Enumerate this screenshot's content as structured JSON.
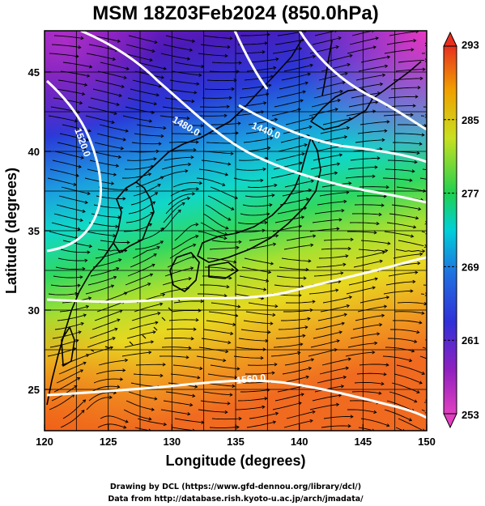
{
  "title": "MSM 18Z03Feb2024 (850.0hPa)",
  "x_axis": {
    "label": "Longitude (degrees)",
    "range": [
      120,
      150
    ],
    "ticks": [
      "120",
      "125",
      "130",
      "135",
      "140",
      "145",
      "150"
    ]
  },
  "y_axis": {
    "label": "Latitude  (degrees)",
    "range": [
      22.4,
      47.6
    ],
    "ticks": [
      "25",
      "30",
      "35",
      "40",
      "45"
    ]
  },
  "colorbar": {
    "range": [
      253,
      293
    ],
    "ticks": [
      "253",
      "261",
      "269",
      "277",
      "285",
      "293"
    ],
    "palette": [
      "#e040c0",
      "#9020c0",
      "#2040e0",
      "#00c8e0",
      "#20d050",
      "#d8e020",
      "#f0a000",
      "#e83020"
    ]
  },
  "contours": [
    {
      "label": "1440.0"
    },
    {
      "label": "1480.0"
    },
    {
      "label": "1520.0"
    },
    {
      "label": "1560.0"
    }
  ],
  "credits": {
    "line1": "Drawing by DCL (https://www.gfd-dennou.org/library/dcl/)",
    "line2": "Data from http://database.rish.kyoto-u.ac.jp/arch/jmadata/"
  }
}
